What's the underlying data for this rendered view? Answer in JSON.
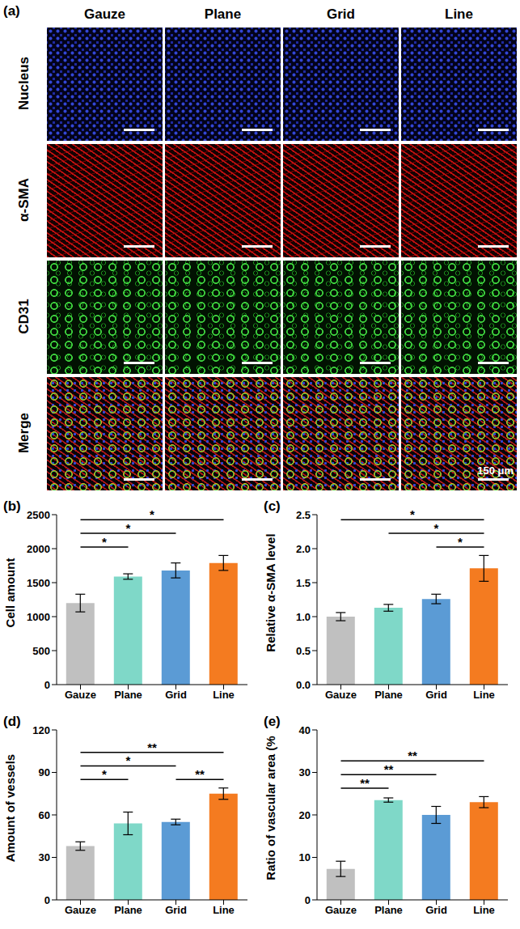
{
  "panel_a": {
    "label": "(a)",
    "columns": [
      "Gauze",
      "Plane",
      "Grid",
      "Line"
    ],
    "rows": [
      "Nucleus",
      "α-SMA",
      "CD31",
      "Merge"
    ],
    "scale_bar": "150 μm"
  },
  "chart_data": [
    {
      "type": "bar",
      "panel": "(b)",
      "ylabel": "Cell amount",
      "categories": [
        "Gauze",
        "Plane",
        "Grid",
        "Line"
      ],
      "values": [
        1200,
        1590,
        1680,
        1790
      ],
      "errors": [
        130,
        40,
        110,
        110
      ],
      "colors": [
        "#c0c0c0",
        "#7fd8c8",
        "#5b9bd5",
        "#f47b20"
      ],
      "ylim": [
        0,
        2500
      ],
      "yticks": [
        0,
        500,
        1000,
        1500,
        2000,
        2500
      ],
      "grid": false,
      "significance": [
        {
          "from": "Gauze",
          "to": "Plane",
          "label": "*"
        },
        {
          "from": "Gauze",
          "to": "Grid",
          "label": "*"
        },
        {
          "from": "Gauze",
          "to": "Line",
          "label": "*"
        }
      ]
    },
    {
      "type": "bar",
      "panel": "(c)",
      "ylabel": "Relative α-SMA level",
      "categories": [
        "Gauze",
        "Plane",
        "Grid",
        "Line"
      ],
      "values": [
        1.0,
        1.13,
        1.26,
        1.71
      ],
      "errors": [
        0.06,
        0.05,
        0.07,
        0.19
      ],
      "colors": [
        "#c0c0c0",
        "#7fd8c8",
        "#5b9bd5",
        "#f47b20"
      ],
      "ylim": [
        0,
        2.5
      ],
      "yticks": [
        {
          "value": 0,
          "label": "0.0"
        },
        {
          "value": 0.5,
          "label": "0.5"
        },
        {
          "value": 1,
          "label": "1.0"
        },
        {
          "value": 1.5,
          "label": "1.5"
        },
        {
          "value": 2,
          "label": "2.0"
        },
        {
          "value": 2.5,
          "label": "2.5"
        }
      ],
      "grid": false,
      "significance": [
        {
          "from": "Grid",
          "to": "Line",
          "label": "*"
        },
        {
          "from": "Plane",
          "to": "Line",
          "label": "*"
        },
        {
          "from": "Gauze",
          "to": "Line",
          "label": "*"
        }
      ]
    },
    {
      "type": "bar",
      "panel": "(d)",
      "ylabel": "Amount of vessels",
      "categories": [
        "Gauze",
        "Plane",
        "Grid",
        "Line"
      ],
      "values": [
        38,
        54,
        55,
        75
      ],
      "errors": [
        3,
        8,
        2,
        4
      ],
      "colors": [
        "#c0c0c0",
        "#7fd8c8",
        "#5b9bd5",
        "#f47b20"
      ],
      "ylim": [
        0,
        120
      ],
      "yticks": [
        0,
        30,
        60,
        90,
        120
      ],
      "grid": false,
      "significance": [
        {
          "from": "Gauze",
          "to": "Plane",
          "label": "*"
        },
        {
          "from": "Grid",
          "to": "Line",
          "label": "**"
        },
        {
          "from": "Gauze",
          "to": "Grid",
          "label": "*"
        },
        {
          "from": "Gauze",
          "to": "Line",
          "label": "**"
        }
      ]
    },
    {
      "type": "bar",
      "panel": "(e)",
      "ylabel": "Ratio of vascular area (%",
      "categories": [
        "Gauze",
        "Plane",
        "Grid",
        "Line"
      ],
      "values": [
        7.3,
        23.5,
        20,
        23
      ],
      "errors": [
        1.8,
        0.5,
        2,
        1.3
      ],
      "colors": [
        "#c0c0c0",
        "#7fd8c8",
        "#5b9bd5",
        "#f47b20"
      ],
      "ylim": [
        0,
        40
      ],
      "yticks": [
        0,
        10,
        20,
        30,
        40
      ],
      "grid": false,
      "significance": [
        {
          "from": "Gauze",
          "to": "Plane",
          "label": "**"
        },
        {
          "from": "Gauze",
          "to": "Grid",
          "label": "**"
        },
        {
          "from": "Gauze",
          "to": "Line",
          "label": "**"
        }
      ]
    }
  ]
}
